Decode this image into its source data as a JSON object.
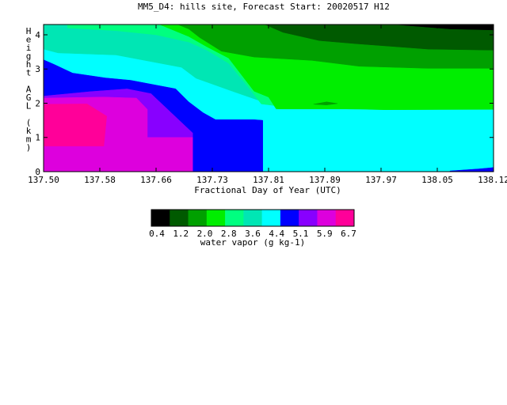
{
  "chart_data": {
    "type": "heatmap",
    "title": "MM5_D4: hills site,  Forecast Start: 20020517 H12",
    "xlabel": "Fractional Day of Year (UTC)",
    "ylabel": "Height AGL (km)",
    "xlim": [
      137.5,
      138.12
    ],
    "ylim": [
      0,
      4.3
    ],
    "x_ticks": [
      "137.50",
      "137.58",
      "137.66",
      "137.73",
      "137.81",
      "137.89",
      "137.97",
      "138.05",
      "138.12"
    ],
    "y_ticks": [
      "0",
      "1",
      "2",
      "3",
      "4"
    ],
    "colorbar": {
      "label": "water vapor (g kg-1)",
      "tick_labels": [
        "0.4",
        "1.2",
        "2.0",
        "2.8",
        "3.6",
        "4.4",
        "5.1",
        "5.9",
        "6.7"
      ],
      "bin_edges": [
        0.0,
        0.4,
        0.8,
        1.2,
        1.6,
        2.0,
        2.4,
        2.8,
        3.2,
        3.6,
        4.0,
        4.4,
        4.8,
        5.1,
        5.5,
        5.9,
        6.3,
        6.7
      ],
      "colors": [
        "#000000",
        "#005a00",
        "#00a000",
        "#00ee00",
        "#00ff80",
        "#00e6b4",
        "#00ffff",
        "#0000ff",
        "#8800ff",
        "#dd00dd",
        "#ff0099"
      ]
    },
    "regions": [
      {
        "value": 4.0,
        "color": "#00ffff",
        "points": [
          [
            137.5,
            0
          ],
          [
            138.12,
            0
          ],
          [
            138.12,
            4.3
          ],
          [
            137.5,
            4.3
          ]
        ]
      },
      {
        "value": 5.0,
        "color": "#8800ff",
        "points": [
          [
            137.5,
            0
          ],
          [
            137.706,
            0
          ],
          [
            137.706,
            1.13
          ],
          [
            137.648,
            2.29
          ],
          [
            137.615,
            2.43
          ],
          [
            137.565,
            2.35
          ],
          [
            137.5,
            2.25
          ]
        ]
      },
      {
        "value": 5.9,
        "color": "#dd00dd",
        "points": [
          [
            137.5,
            0
          ],
          [
            137.706,
            0
          ],
          [
            137.706,
            1.0
          ],
          [
            137.643,
            1.0
          ],
          [
            137.643,
            1.82
          ],
          [
            137.628,
            2.15
          ],
          [
            137.583,
            2.18
          ],
          [
            137.5,
            2.15
          ]
        ]
      },
      {
        "value": 6.3,
        "color": "#ff0099",
        "points": [
          [
            137.5,
            0.75
          ],
          [
            137.583,
            0.75
          ],
          [
            137.587,
            1.62
          ],
          [
            137.56,
            1.98
          ],
          [
            137.5,
            1.97
          ]
        ]
      },
      {
        "value": 4.2,
        "color": "#0000ff",
        "points": [
          [
            137.5,
            2.22
          ],
          [
            137.565,
            2.35
          ],
          [
            137.615,
            2.43
          ],
          [
            137.648,
            2.29
          ],
          [
            137.706,
            1.13
          ],
          [
            137.706,
            0
          ],
          [
            137.802,
            0
          ],
          [
            137.802,
            1.5
          ],
          [
            137.79,
            1.52
          ],
          [
            137.737,
            1.52
          ],
          [
            137.72,
            1.72
          ],
          [
            137.7,
            2.04
          ],
          [
            137.682,
            2.42
          ],
          [
            137.62,
            2.67
          ],
          [
            137.585,
            2.74
          ],
          [
            137.54,
            2.88
          ],
          [
            137.515,
            3.13
          ],
          [
            137.5,
            3.27
          ]
        ]
      },
      {
        "value": 3.0,
        "color": "#00e6b4",
        "points": [
          [
            137.5,
            4.3
          ],
          [
            137.5,
            3.58
          ],
          [
            137.52,
            3.47
          ],
          [
            137.6,
            3.41
          ],
          [
            137.69,
            3.05
          ],
          [
            137.71,
            2.73
          ],
          [
            137.76,
            2.35
          ],
          [
            137.805,
            2.02
          ],
          [
            137.845,
            1.86
          ],
          [
            137.97,
            1.81
          ],
          [
            138.12,
            1.83
          ],
          [
            138.12,
            4.3
          ]
        ]
      },
      {
        "value": 2.6,
        "color": "#00ff80",
        "points": [
          [
            137.533,
            4.3
          ],
          [
            137.533,
            4.2
          ],
          [
            137.6,
            4.12
          ],
          [
            137.655,
            4.0
          ],
          [
            137.7,
            3.79
          ],
          [
            137.725,
            3.55
          ],
          [
            137.755,
            3.17
          ],
          [
            137.78,
            2.53
          ],
          [
            137.8,
            1.98
          ],
          [
            137.845,
            1.86
          ],
          [
            137.97,
            1.81
          ],
          [
            138.12,
            1.83
          ],
          [
            138.12,
            4.3
          ]
        ]
      },
      {
        "value": 1.8,
        "color": "#00ee00",
        "points": [
          [
            137.66,
            4.3
          ],
          [
            137.7,
            3.95
          ],
          [
            137.725,
            3.65
          ],
          [
            137.755,
            3.32
          ],
          [
            137.79,
            2.35
          ],
          [
            137.81,
            2.18
          ],
          [
            137.82,
            1.85
          ],
          [
            137.86,
            1.88
          ],
          [
            137.97,
            1.81
          ],
          [
            138.12,
            1.82
          ],
          [
            138.12,
            4.3
          ]
        ]
      },
      {
        "value": 1.3,
        "color": "#00a000",
        "points": [
          [
            137.685,
            4.3
          ],
          [
            137.7,
            4.17
          ],
          [
            137.715,
            3.92
          ],
          [
            137.745,
            3.52
          ],
          [
            137.79,
            3.35
          ],
          [
            137.87,
            3.25
          ],
          [
            137.935,
            3.08
          ],
          [
            138.03,
            3.02
          ],
          [
            138.12,
            3.02
          ],
          [
            138.12,
            4.3
          ]
        ]
      },
      {
        "value": 0.8,
        "color": "#005a00",
        "points": [
          [
            137.805,
            4.3
          ],
          [
            137.83,
            4.07
          ],
          [
            137.88,
            3.83
          ],
          [
            137.93,
            3.74
          ],
          [
            138.03,
            3.58
          ],
          [
            138.12,
            3.55
          ],
          [
            138.12,
            4.3
          ]
        ]
      },
      {
        "value": 0.3,
        "color": "#000000",
        "points": [
          [
            137.985,
            4.3
          ],
          [
            138.06,
            4.17
          ],
          [
            138.12,
            4.14
          ],
          [
            138.12,
            4.3
          ]
        ]
      },
      {
        "value": 1.8,
        "color": "#00ee00",
        "points": [
          [
            137.82,
            1.83
          ],
          [
            137.86,
            1.99
          ],
          [
            137.89,
            2.04
          ],
          [
            137.92,
            1.96
          ],
          [
            137.96,
            1.92
          ],
          [
            137.96,
            1.83
          ]
        ]
      },
      {
        "value": 1.3,
        "color": "#00a000",
        "points": [
          [
            137.872,
            1.97
          ],
          [
            137.89,
            2.04
          ],
          [
            137.905,
            1.99
          ],
          [
            137.89,
            1.95
          ]
        ]
      },
      {
        "value": 4.4,
        "color": "#0000ff",
        "points": [
          [
            138.06,
            0
          ],
          [
            138.12,
            0
          ],
          [
            138.12,
            0.12
          ],
          [
            138.1,
            0.08
          ],
          [
            138.06,
            0.02
          ]
        ]
      }
    ]
  }
}
